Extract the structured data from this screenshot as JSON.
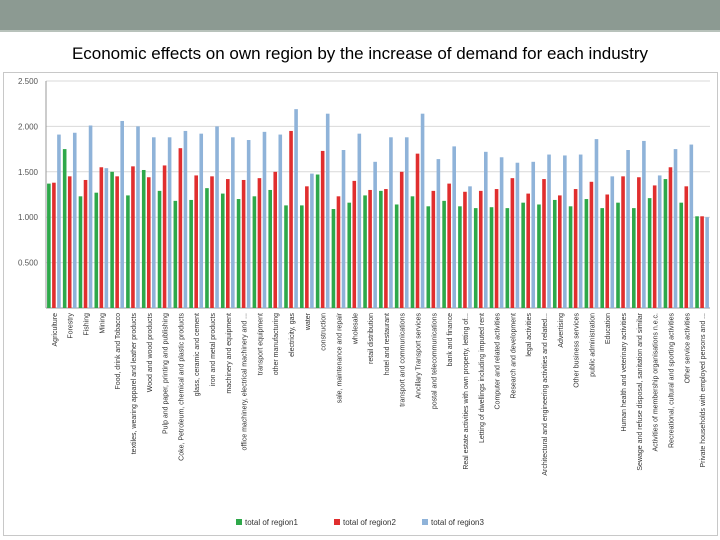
{
  "slide": {
    "title": "Economic effects  on own region by the increase of demand for each industry"
  },
  "chart_data": {
    "type": "bar",
    "title": "",
    "xlabel": "",
    "ylabel": "",
    "ylim": [
      0,
      2.5
    ],
    "yticks": [
      "0.500",
      "1.000",
      "1.500",
      "2.000",
      "2.500"
    ],
    "ytick_values": [
      0.5,
      1.0,
      1.5,
      2.0,
      2.5
    ],
    "legend_position": "bottom",
    "grid": true,
    "categories": [
      "Agriculture",
      "Forestry",
      "Fishing",
      "Mining",
      "Food, drink and Tobacco",
      "textiles, wearing apparel and leather products",
      "Wood and wood products",
      "Pulp and paper, printing and publishing",
      "Coke, Petroleum, chemical and plastic products",
      "glass, ceramic and cement",
      "iron and metal products",
      "machinery and equipment",
      "office machinery, electrical machinery and ...",
      "transport equipment",
      "other manufacturing",
      "electricity, gas",
      "water",
      "construction",
      "sale, maintenance and repair",
      "wholesale",
      "retail distribution",
      "hotel and restaurant",
      "transport and communications",
      "Ancillary Transport services",
      "postal and telecommunications",
      "bank and finance",
      "Real estate activities with own property, letting of...",
      "Letting of dwellings including imputed rent",
      "Computer and related activities",
      "Research and development",
      "legal activities",
      "Architectural and engineering activities and related...",
      "Advertising",
      "Other business services",
      "public administration",
      "Education",
      "Human health and veterinary activities",
      "Sewage and refuse disposal, sanitation and similar",
      "Activities of membership organisations n.e.c.",
      "Recreational, cultural and sporting activities",
      "Other service activities",
      "Private households with employed persons and ..."
    ],
    "series": [
      {
        "name": "total of region1",
        "color": "#2ea84a",
        "values": [
          1.37,
          1.75,
          1.23,
          1.27,
          1.5,
          1.24,
          1.52,
          1.29,
          1.18,
          1.19,
          1.32,
          1.26,
          1.2,
          1.23,
          1.3,
          1.13,
          1.13,
          1.47,
          1.09,
          1.16,
          1.24,
          1.29,
          1.14,
          1.23,
          1.12,
          1.18,
          1.12,
          1.1,
          1.11,
          1.1,
          1.16,
          1.14,
          1.19,
          1.12,
          1.2,
          1.1,
          1.16,
          1.1,
          1.21,
          1.42,
          1.16,
          1.01
        ]
      },
      {
        "name": "total of region2",
        "color": "#e02e2e",
        "values": [
          1.38,
          1.45,
          1.41,
          1.55,
          1.45,
          1.56,
          1.44,
          1.57,
          1.76,
          1.46,
          1.45,
          1.42,
          1.41,
          1.43,
          1.5,
          1.95,
          1.34,
          1.73,
          1.23,
          1.4,
          1.3,
          1.31,
          1.5,
          1.7,
          1.29,
          1.37,
          1.28,
          1.29,
          1.31,
          1.43,
          1.26,
          1.42,
          1.24,
          1.31,
          1.39,
          1.25,
          1.45,
          1.44,
          1.35,
          1.55,
          1.34,
          1.01
        ]
      },
      {
        "name": "total of region3",
        "color": "#8fb3d9",
        "values": [
          1.91,
          1.93,
          2.01,
          1.54,
          2.06,
          2.0,
          1.88,
          1.88,
          1.95,
          1.92,
          2.0,
          1.88,
          1.85,
          1.94,
          1.91,
          2.19,
          1.48,
          2.14,
          1.74,
          1.92,
          1.61,
          1.88,
          1.88,
          2.14,
          1.64,
          1.78,
          1.34,
          1.72,
          1.66,
          1.6,
          1.61,
          1.69,
          1.68,
          1.69,
          1.86,
          1.45,
          1.74,
          1.84,
          1.46,
          1.75,
          1.8,
          1.0
        ]
      }
    ]
  }
}
